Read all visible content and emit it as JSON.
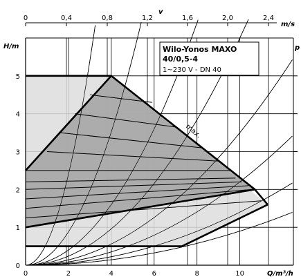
{
  "chart_data": {
    "type": "line",
    "title": "Wilo-Yonos MAXO",
    "subtitle": "40/0,5-4",
    "spec": "1~230 V - DN 40",
    "xlabel": "Q/m³/h",
    "ylabel": "H/m",
    "top_axis_letter": "v",
    "top_axis_unit": "m/s",
    "right_axis_letter": "p",
    "xlim": [
      0,
      12.5
    ],
    "ylim": [
      0,
      6
    ],
    "x_ticks": [
      "0",
      "2",
      "4",
      "6",
      "8",
      "10"
    ],
    "y_ticks": [
      "0",
      "1",
      "2",
      "3",
      "4",
      "5"
    ],
    "top_ticks": [
      "0",
      "0,4",
      "0,8",
      "1,2",
      "1,6",
      "2,0",
      "2,4"
    ],
    "grid": true,
    "max_label": "max.",
    "outer_field": [
      [
        0,
        5
      ],
      [
        4,
        5
      ],
      [
        11.3,
        1.6
      ],
      [
        7.3,
        0.5
      ],
      [
        0,
        0.5
      ]
    ],
    "inner_field": [
      [
        0,
        2.5
      ],
      [
        4,
        5
      ],
      [
        10.7,
        2
      ],
      [
        0,
        1
      ]
    ],
    "series": [
      {
        "values": [
          [
            0,
            5
          ],
          [
            4,
            5
          ],
          [
            10.7,
            2
          ],
          [
            11.3,
            1.6
          ]
        ]
      },
      {
        "values": [
          [
            0,
            2.5
          ],
          [
            4,
            5
          ]
        ]
      },
      {
        "values": [
          [
            0,
            1
          ],
          [
            10.7,
            2
          ]
        ]
      },
      {
        "values": [
          [
            0,
            0.5
          ],
          [
            7.3,
            0.5
          ],
          [
            11.3,
            1.6
          ]
        ]
      }
    ],
    "setpoint_lines": [
      [
        [
          0,
          2.5
        ],
        [
          9.6,
          2.5
        ]
      ],
      [
        [
          0,
          2.2
        ],
        [
          9.8,
          2.3
        ]
      ],
      [
        [
          0,
          2.0
        ],
        [
          10.1,
          2.2
        ]
      ],
      [
        [
          0,
          1.75
        ],
        [
          10.4,
          2.1
        ]
      ],
      [
        [
          0,
          1.5
        ],
        [
          10.6,
          2.0
        ]
      ],
      [
        [
          1.0,
          3.0
        ],
        [
          9.0,
          2.75
        ]
      ],
      [
        [
          1.6,
          3.5
        ],
        [
          8.2,
          3.1
        ]
      ],
      [
        [
          2.3,
          4.0
        ],
        [
          7.0,
          3.65
        ]
      ],
      [
        [
          3.0,
          4.5
        ],
        [
          5.9,
          4.3
        ]
      ],
      [
        [
          0,
          1.25
        ],
        [
          11.0,
          1.7
        ]
      ]
    ],
    "system_curves_k": [
      0.6,
      0.22,
      0.1,
      0.06,
      0.035,
      0.022,
      0.014,
      0.009
    ],
    "side_ticks_y": [
      1,
      2,
      3,
      4,
      5
    ]
  }
}
